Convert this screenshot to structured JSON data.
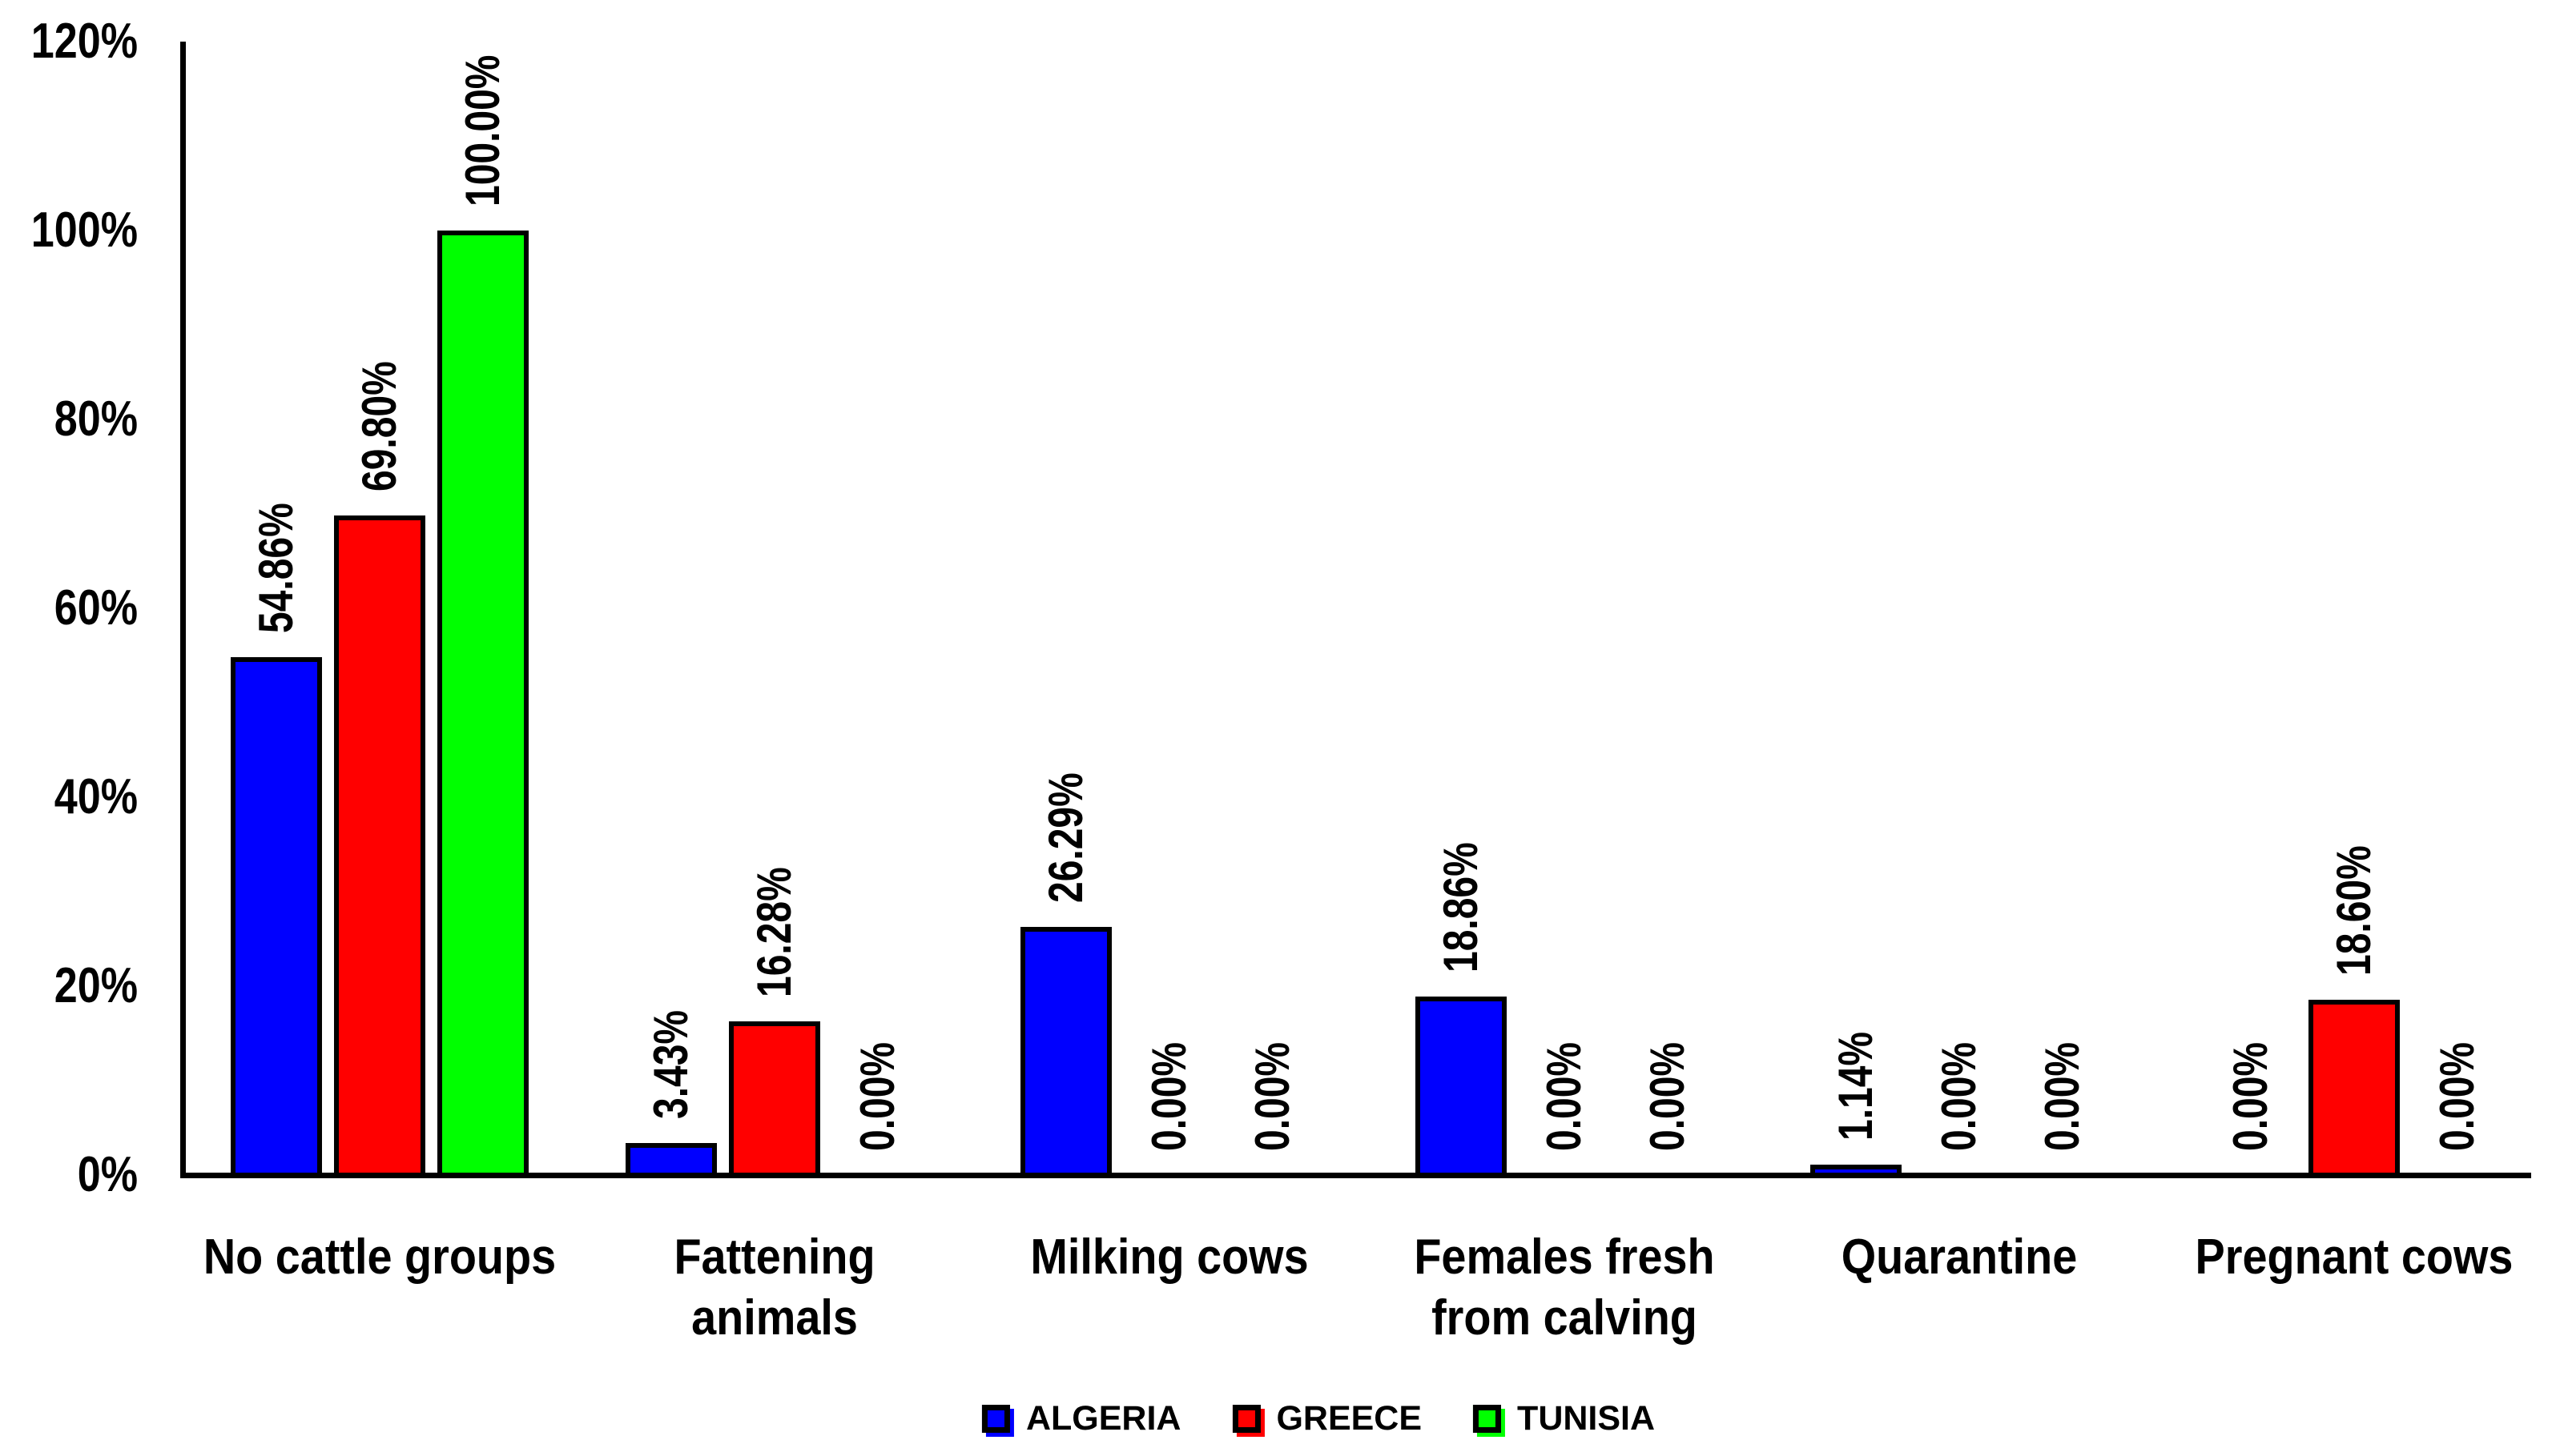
{
  "chart_data": {
    "type": "bar",
    "title": "",
    "xlabel": "",
    "ylabel": "",
    "grid": false,
    "background_color": "#FFFFFF",
    "axis_color": "#000000",
    "text_color": "#000000",
    "categories": [
      "No cattle groups",
      "Fattening animals",
      "Milking cows",
      "Females fresh from calving",
      "Quarantine",
      "Pregnant cows"
    ],
    "category_label_lines": [
      [
        "No cattle groups"
      ],
      [
        "Fattening",
        "animals"
      ],
      [
        "Milking cows"
      ],
      [
        "Females fresh",
        "from calving"
      ],
      [
        "Quarantine"
      ],
      [
        "Pregnant cows"
      ]
    ],
    "series": [
      {
        "name": "ALGERIA",
        "color": "#0000FF",
        "values": [
          54.86,
          3.43,
          26.29,
          18.86,
          1.14,
          0.0
        ],
        "labels": [
          "54.86%",
          "3.43%",
          "26.29%",
          "18.86%",
          "1.14%",
          "0.00%"
        ]
      },
      {
        "name": "GREECE",
        "color": "#FF0000",
        "values": [
          69.8,
          16.28,
          0.0,
          0.0,
          0.0,
          18.6
        ],
        "labels": [
          "69.80%",
          "16.28%",
          "0.00%",
          "0.00%",
          "0.00%",
          "18.60%"
        ]
      },
      {
        "name": "TUNISIA",
        "color": "#00FF00",
        "values": [
          100.0,
          0.0,
          0.0,
          0.0,
          0.0,
          0.0
        ],
        "labels": [
          "100.00%",
          "0.00%",
          "0.00%",
          "0.00%",
          "0.00%",
          "0.00%"
        ]
      }
    ],
    "y_axis": {
      "min": 0,
      "max": 120,
      "step": 20,
      "tick_labels": [
        "0%",
        "20%",
        "40%",
        "60%",
        "80%",
        "100%",
        "120%"
      ]
    },
    "data_label_rotation": -90,
    "legend": {
      "position": "bottom",
      "entries": [
        "ALGERIA",
        "GREECE",
        "TUNISIA"
      ]
    }
  }
}
